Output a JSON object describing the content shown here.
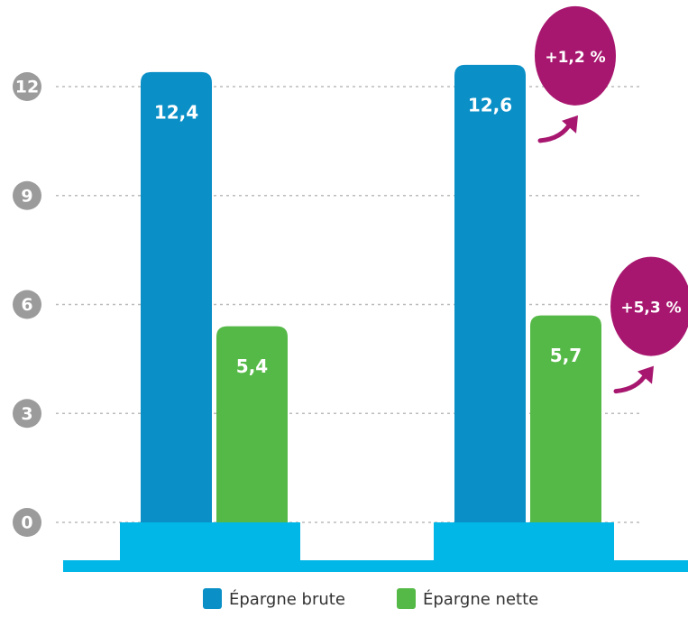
{
  "chart_data": {
    "type": "bar",
    "categories": [
      null,
      null
    ],
    "series": [
      {
        "name": "Épargne brute",
        "color": "#0a8fc7",
        "values": [
          12.4,
          12.6
        ],
        "value_labels": [
          "12,4",
          "12,6"
        ]
      },
      {
        "name": "Épargne nette",
        "color": "#55b947",
        "values": [
          5.4,
          5.7
        ],
        "value_labels": [
          "5,4",
          "5,7"
        ]
      }
    ],
    "annotations": [
      "+1,2 %",
      "+5,3 %"
    ],
    "ylim": [
      0,
      14
    ],
    "yticks": [
      0,
      3,
      6,
      9,
      12
    ],
    "grid": true
  }
}
